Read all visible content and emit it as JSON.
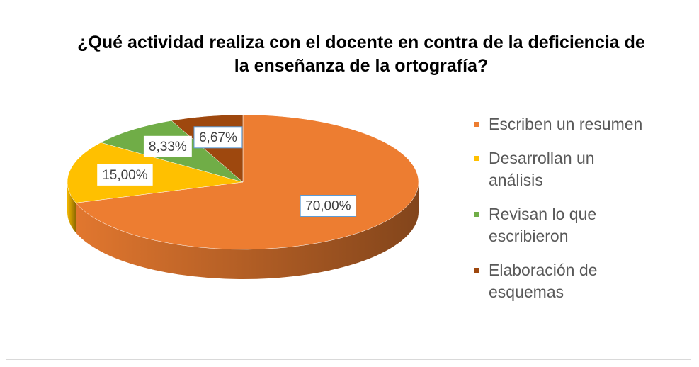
{
  "chart_data": {
    "type": "pie",
    "title": "¿Qué actividad realiza con el docente en contra de la deficiencia de la enseñanza de la ortografía?",
    "categories": [
      "Escriben un resumen",
      "Desarrollan un análisis",
      "Revisan lo que escribieron",
      "Elaboración de esquemas"
    ],
    "values": [
      70,
      15,
      8.33,
      6.67
    ],
    "value_labels": [
      "70,00%",
      "15,00%",
      "8,33%",
      "6,67%"
    ],
    "colors": [
      "#ED7D31",
      "#FFC000",
      "#70AD47",
      "#9E480E"
    ],
    "legend": "right"
  }
}
